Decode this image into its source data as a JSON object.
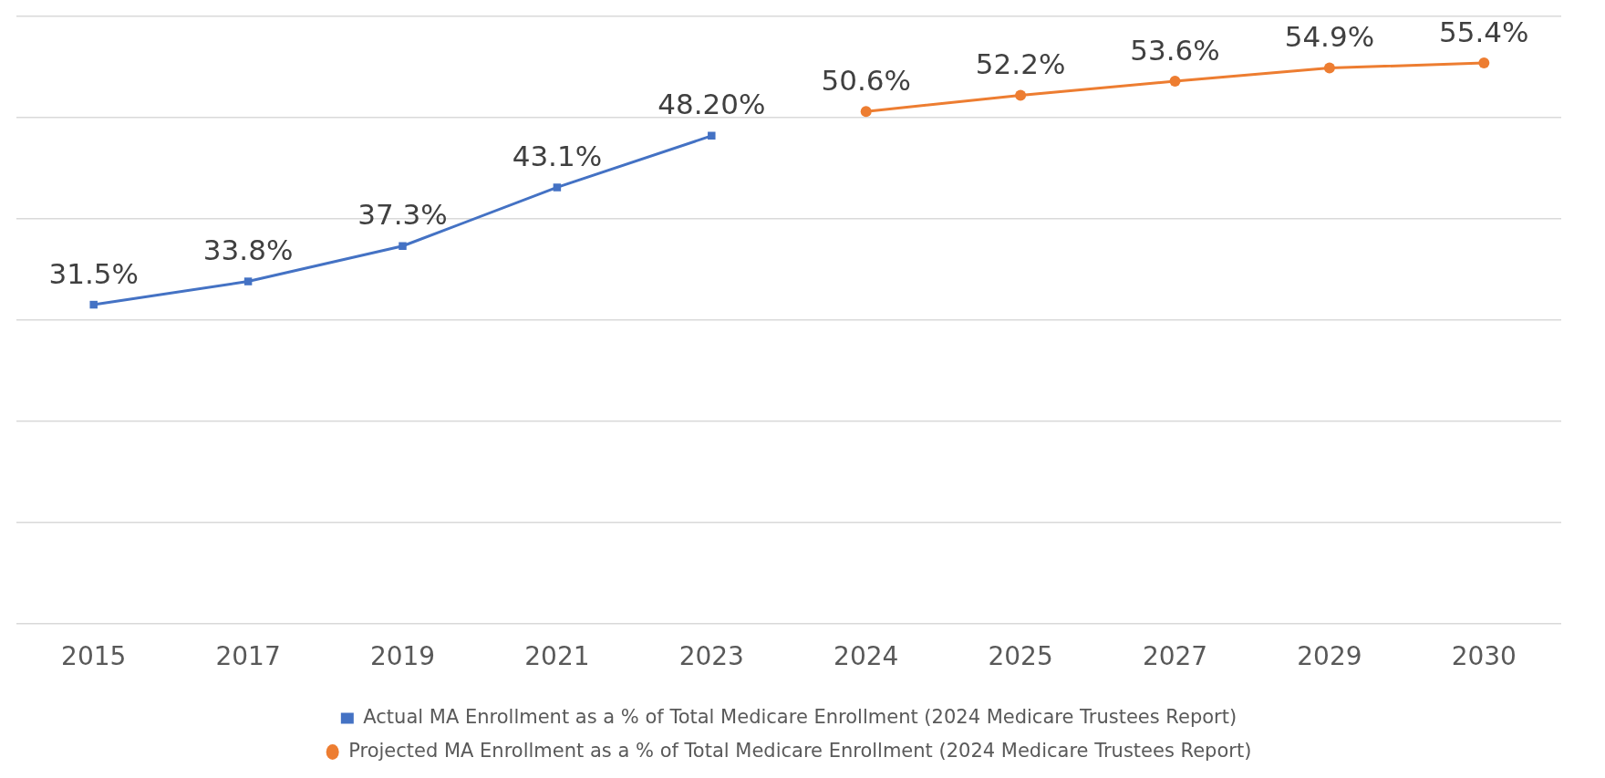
{
  "chart_data": {
    "type": "line",
    "categories": [
      "2015",
      "2017",
      "2019",
      "2021",
      "2023",
      "2024",
      "2025",
      "2027",
      "2029",
      "2030"
    ],
    "series": [
      {
        "name": "Actual MA Enrollment as a % of Total Medicare Enrollment (2024 Medicare Trustees Report)",
        "color": "#4472c4",
        "marker": "square",
        "values": [
          31.5,
          33.8,
          37.3,
          43.1,
          48.2,
          null,
          null,
          null,
          null,
          null
        ],
        "value_labels": [
          "31.5%",
          "33.8%",
          "37.3%",
          "43.1%",
          "48.20%",
          null,
          null,
          null,
          null,
          null
        ]
      },
      {
        "name": "Projected MA Enrollment as a % of Total Medicare Enrollment (2024 Medicare Trustees Report)",
        "color": "#ed7d31",
        "marker": "circle",
        "values": [
          null,
          null,
          null,
          null,
          null,
          50.6,
          52.2,
          53.6,
          54.9,
          55.4
        ],
        "value_labels": [
          null,
          null,
          null,
          null,
          null,
          "50.6%",
          "52.2%",
          "53.6%",
          "54.9%",
          "55.4%"
        ]
      }
    ],
    "ylim": [
      0,
      60
    ],
    "yticks": [
      {
        "value": 0,
        "label": null
      },
      {
        "value": 10,
        "label": null
      },
      {
        "value": 20,
        "label": null
      },
      {
        "value": 30,
        "label": null
      },
      {
        "value": 40,
        "label": null
      },
      {
        "value": 50,
        "label": null
      },
      {
        "value": 60,
        "label": null
      }
    ],
    "tick_labels": "x",
    "grid": "y",
    "legend": "bottom",
    "line_style": "solid"
  }
}
